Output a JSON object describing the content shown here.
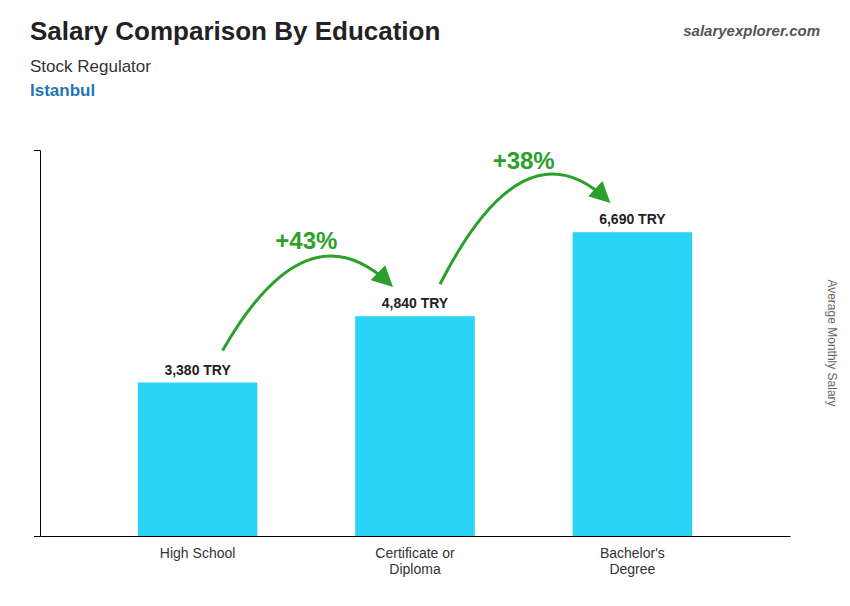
{
  "chart_data": {
    "type": "bar",
    "title": "Salary Comparison By Education",
    "subtitle": [
      "Stock Regulator",
      "Istanbul"
    ],
    "source": "salaryexplorer.com",
    "y_label": "Average Monthly Salary",
    "categories": [
      "High School",
      "Certificate or\nDiploma",
      "Bachelor's\nDegree"
    ],
    "values": [
      3380,
      4840,
      6690
    ],
    "value_labels": [
      "3,380 TRY",
      "4,840 TRY",
      "6,690 TRY"
    ],
    "data_labels": true,
    "annotations": [
      "+43%",
      "+38%"
    ],
    "color": "#29d4f5",
    "ylim": [
      0,
      8500
    ],
    "yticks": [],
    "grid": false,
    "tick_labels": "x"
  }
}
